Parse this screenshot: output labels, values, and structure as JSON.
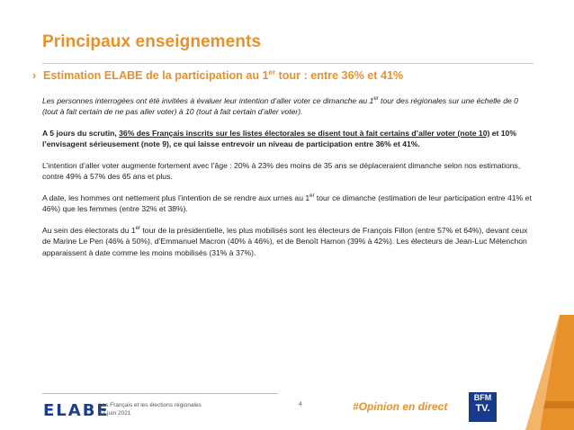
{
  "header": {
    "title": "Principaux enseignements",
    "subtitle_chevron": "›",
    "subtitle_pre": "Estimation ELABE de la participation au 1",
    "subtitle_sup": "er",
    "subtitle_post": " tour : entre 36% et 41%"
  },
  "body": {
    "p1_a": "Les personnes interrogées ont été invitées à évaluer leur intention d’aller voter ce dimanche au 1",
    "p1_sup": "er",
    "p1_b": " tour des régionales sur une échelle de 0 (tout à fait certain de ne pas aller voter) à 10 (tout à fait certain d’aller voter).",
    "p2_a": "A 5 jours du scrutin, ",
    "p2_u": "36% des Français inscrits sur les listes électorales se disent tout à fait certains d’aller voter (note 10)",
    "p2_b": " et 10% l’envisagent sérieusement (note 9), ce qui laisse entrevoir un niveau de participation entre 36% et 41%.",
    "p3": "L’intention d’aller voter augmente fortement avec l’âge : 20% à 23% des moins de 35 ans se déplaceraient dimanche selon nos estimations, contre 49% à 57% des 65 ans et plus.",
    "p4_a": "A date, les hommes ont nettement plus l’intention de se rendre aux urnes au 1",
    "p4_sup": "er",
    "p4_b": " tour ce dimanche (estimation de leur participation entre 41% et 46%) que les femmes (entre 32% et 38%).",
    "p5_a": "Au sein des électorats du 1",
    "p5_sup": "er",
    "p5_b": " tour de la présidentielle, les plus mobilisés sont les électeurs de François Fillon (entre 57% et 64%), devant ceux de Marine Le Pen (46% à 50%), d’Emmanuel Macron (40% à 46%), et de Benoît Hamon (39% à 42%). Les électeurs de Jean-Luc Mélenchon apparaissent à date comme les moins mobilisés (31% à 37%)."
  },
  "footer": {
    "logo": "ELABE",
    "line1": "Les Français et les élections régionales",
    "line2": "17 juin 2021",
    "page": "4",
    "hashtag": "#Opinion en direct",
    "bfm_top": "BFM",
    "bfm_bottom": "TV."
  },
  "colors": {
    "accent": "#E8912B",
    "brand_blue": "#1C3D8F"
  }
}
